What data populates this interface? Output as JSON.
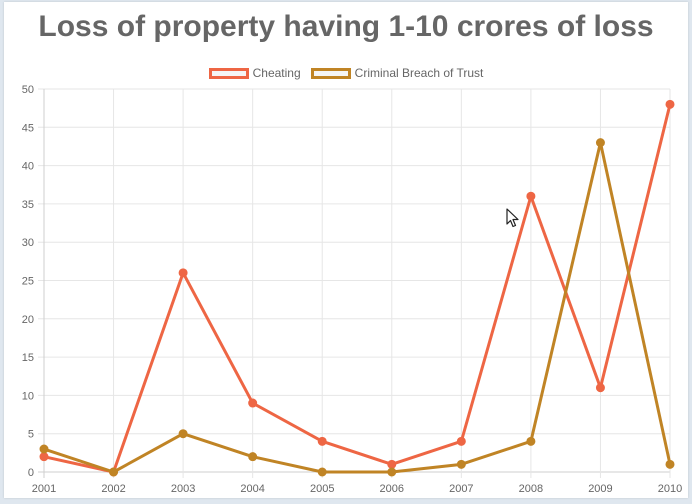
{
  "chart_data": {
    "type": "line",
    "title": "Loss of property having 1-10 crores of loss",
    "x": [
      "2001",
      "2002",
      "2003",
      "2004",
      "2005",
      "2006",
      "2007",
      "2008",
      "2009",
      "2010"
    ],
    "ylim": [
      0,
      50
    ],
    "yticks": [
      0,
      5,
      10,
      15,
      20,
      25,
      30,
      35,
      40,
      45,
      50
    ],
    "grid": true,
    "legend": "top-center",
    "series": [
      {
        "name": "Cheating",
        "color": "#ee6644",
        "values": [
          2,
          0,
          26,
          9,
          4,
          1,
          4,
          36,
          11,
          48
        ]
      },
      {
        "name": "Criminal Breach of Trust",
        "color": "#c08425",
        "values": [
          3,
          0,
          5,
          2,
          0,
          0,
          1,
          4,
          43,
          1
        ]
      }
    ]
  }
}
